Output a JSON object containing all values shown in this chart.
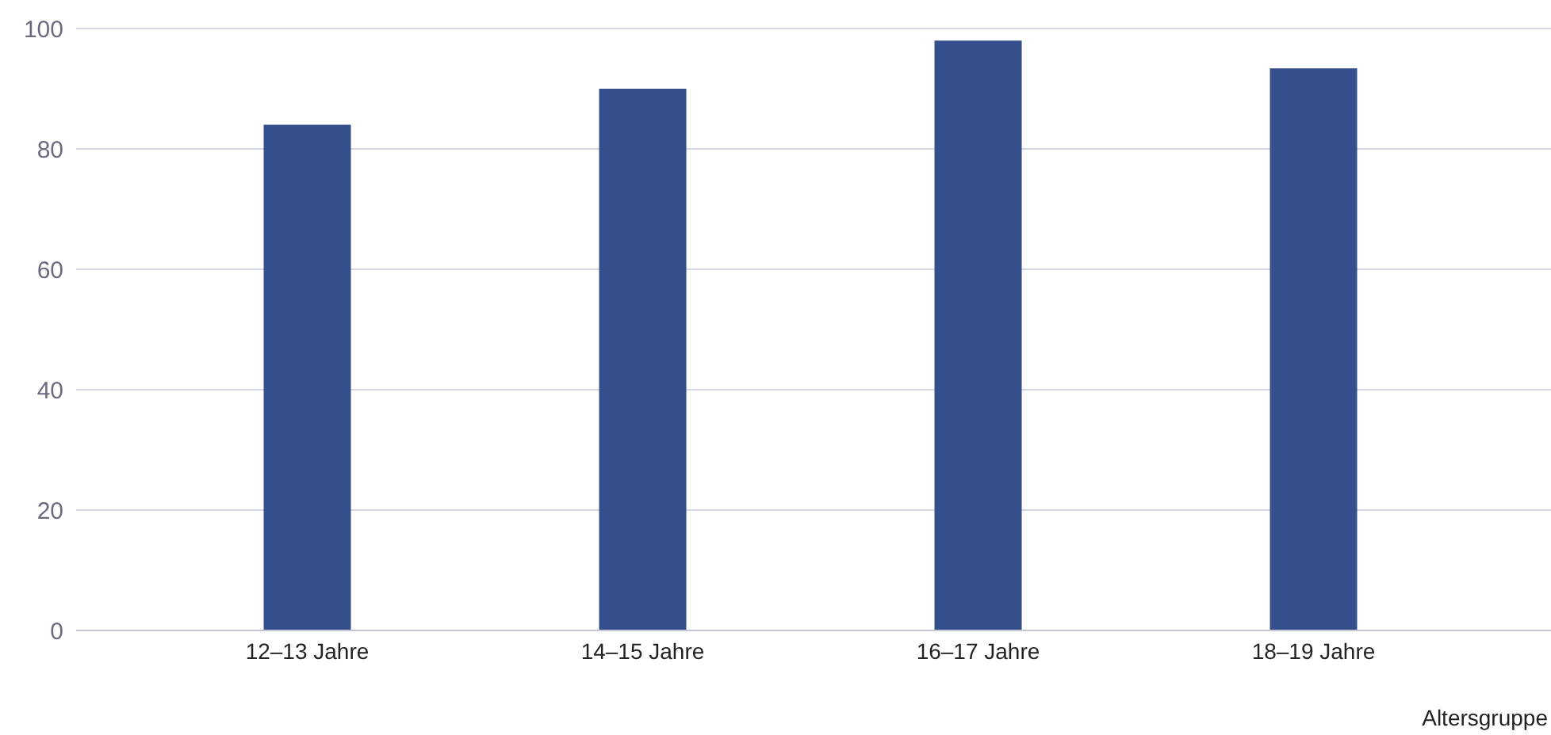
{
  "chart_data": {
    "type": "bar",
    "xlabel": "Altersgruppe",
    "categories": [
      "12–13 Jahre",
      "14–15 Jahre",
      "16–17 Jahre",
      "18–19 Jahre"
    ],
    "values": [
      84,
      90,
      98,
      93.4
    ],
    "color": "#354f8c",
    "ylim": [
      0,
      100
    ],
    "yticks": [
      0,
      20,
      40,
      60,
      80,
      100
    ],
    "grid": "y"
  }
}
